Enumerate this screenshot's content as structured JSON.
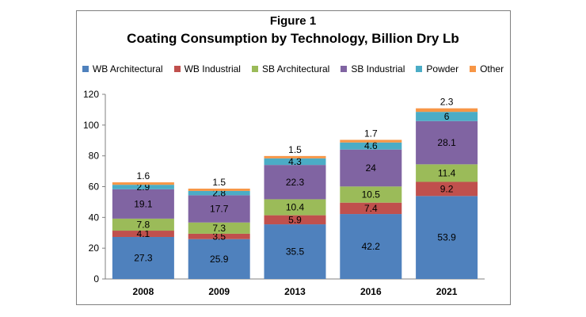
{
  "figure_label": "Figure 1",
  "colors": {
    "WB Architectural": "#4f81bd",
    "WB Industrial": "#c0504d",
    "SB Architectural": "#9bbb59",
    "SB Industrial": "#8064a2",
    "Powder": "#4bacc6",
    "Other": "#f79646"
  },
  "chart_data": {
    "type": "bar",
    "stacked": true,
    "title": "Coating Consumption by Technology, Billion Dry Lb",
    "xlabel": "",
    "ylabel": "",
    "categories": [
      "2008",
      "2009",
      "2013",
      "2016",
      "2021"
    ],
    "ylim": [
      0,
      120
    ],
    "yticks": [
      0,
      20,
      40,
      60,
      80,
      100,
      120
    ],
    "grid": false,
    "legend_position": "top",
    "series": [
      {
        "name": "WB Architectural",
        "values": [
          27.3,
          25.9,
          35.5,
          42.2,
          53.9
        ]
      },
      {
        "name": "WB Industrial",
        "values": [
          4.1,
          3.5,
          5.9,
          7.4,
          9.2
        ]
      },
      {
        "name": "SB Architectural",
        "values": [
          7.8,
          7.3,
          10.4,
          10.5,
          11.4
        ]
      },
      {
        "name": "SB Industrial",
        "values": [
          19.1,
          17.7,
          22.3,
          24,
          28.1
        ]
      },
      {
        "name": "Powder",
        "values": [
          2.9,
          2.8,
          4.3,
          4.6,
          6
        ]
      },
      {
        "name": "Other",
        "values": [
          1.6,
          1.5,
          1.5,
          1.7,
          2.3
        ]
      }
    ]
  }
}
